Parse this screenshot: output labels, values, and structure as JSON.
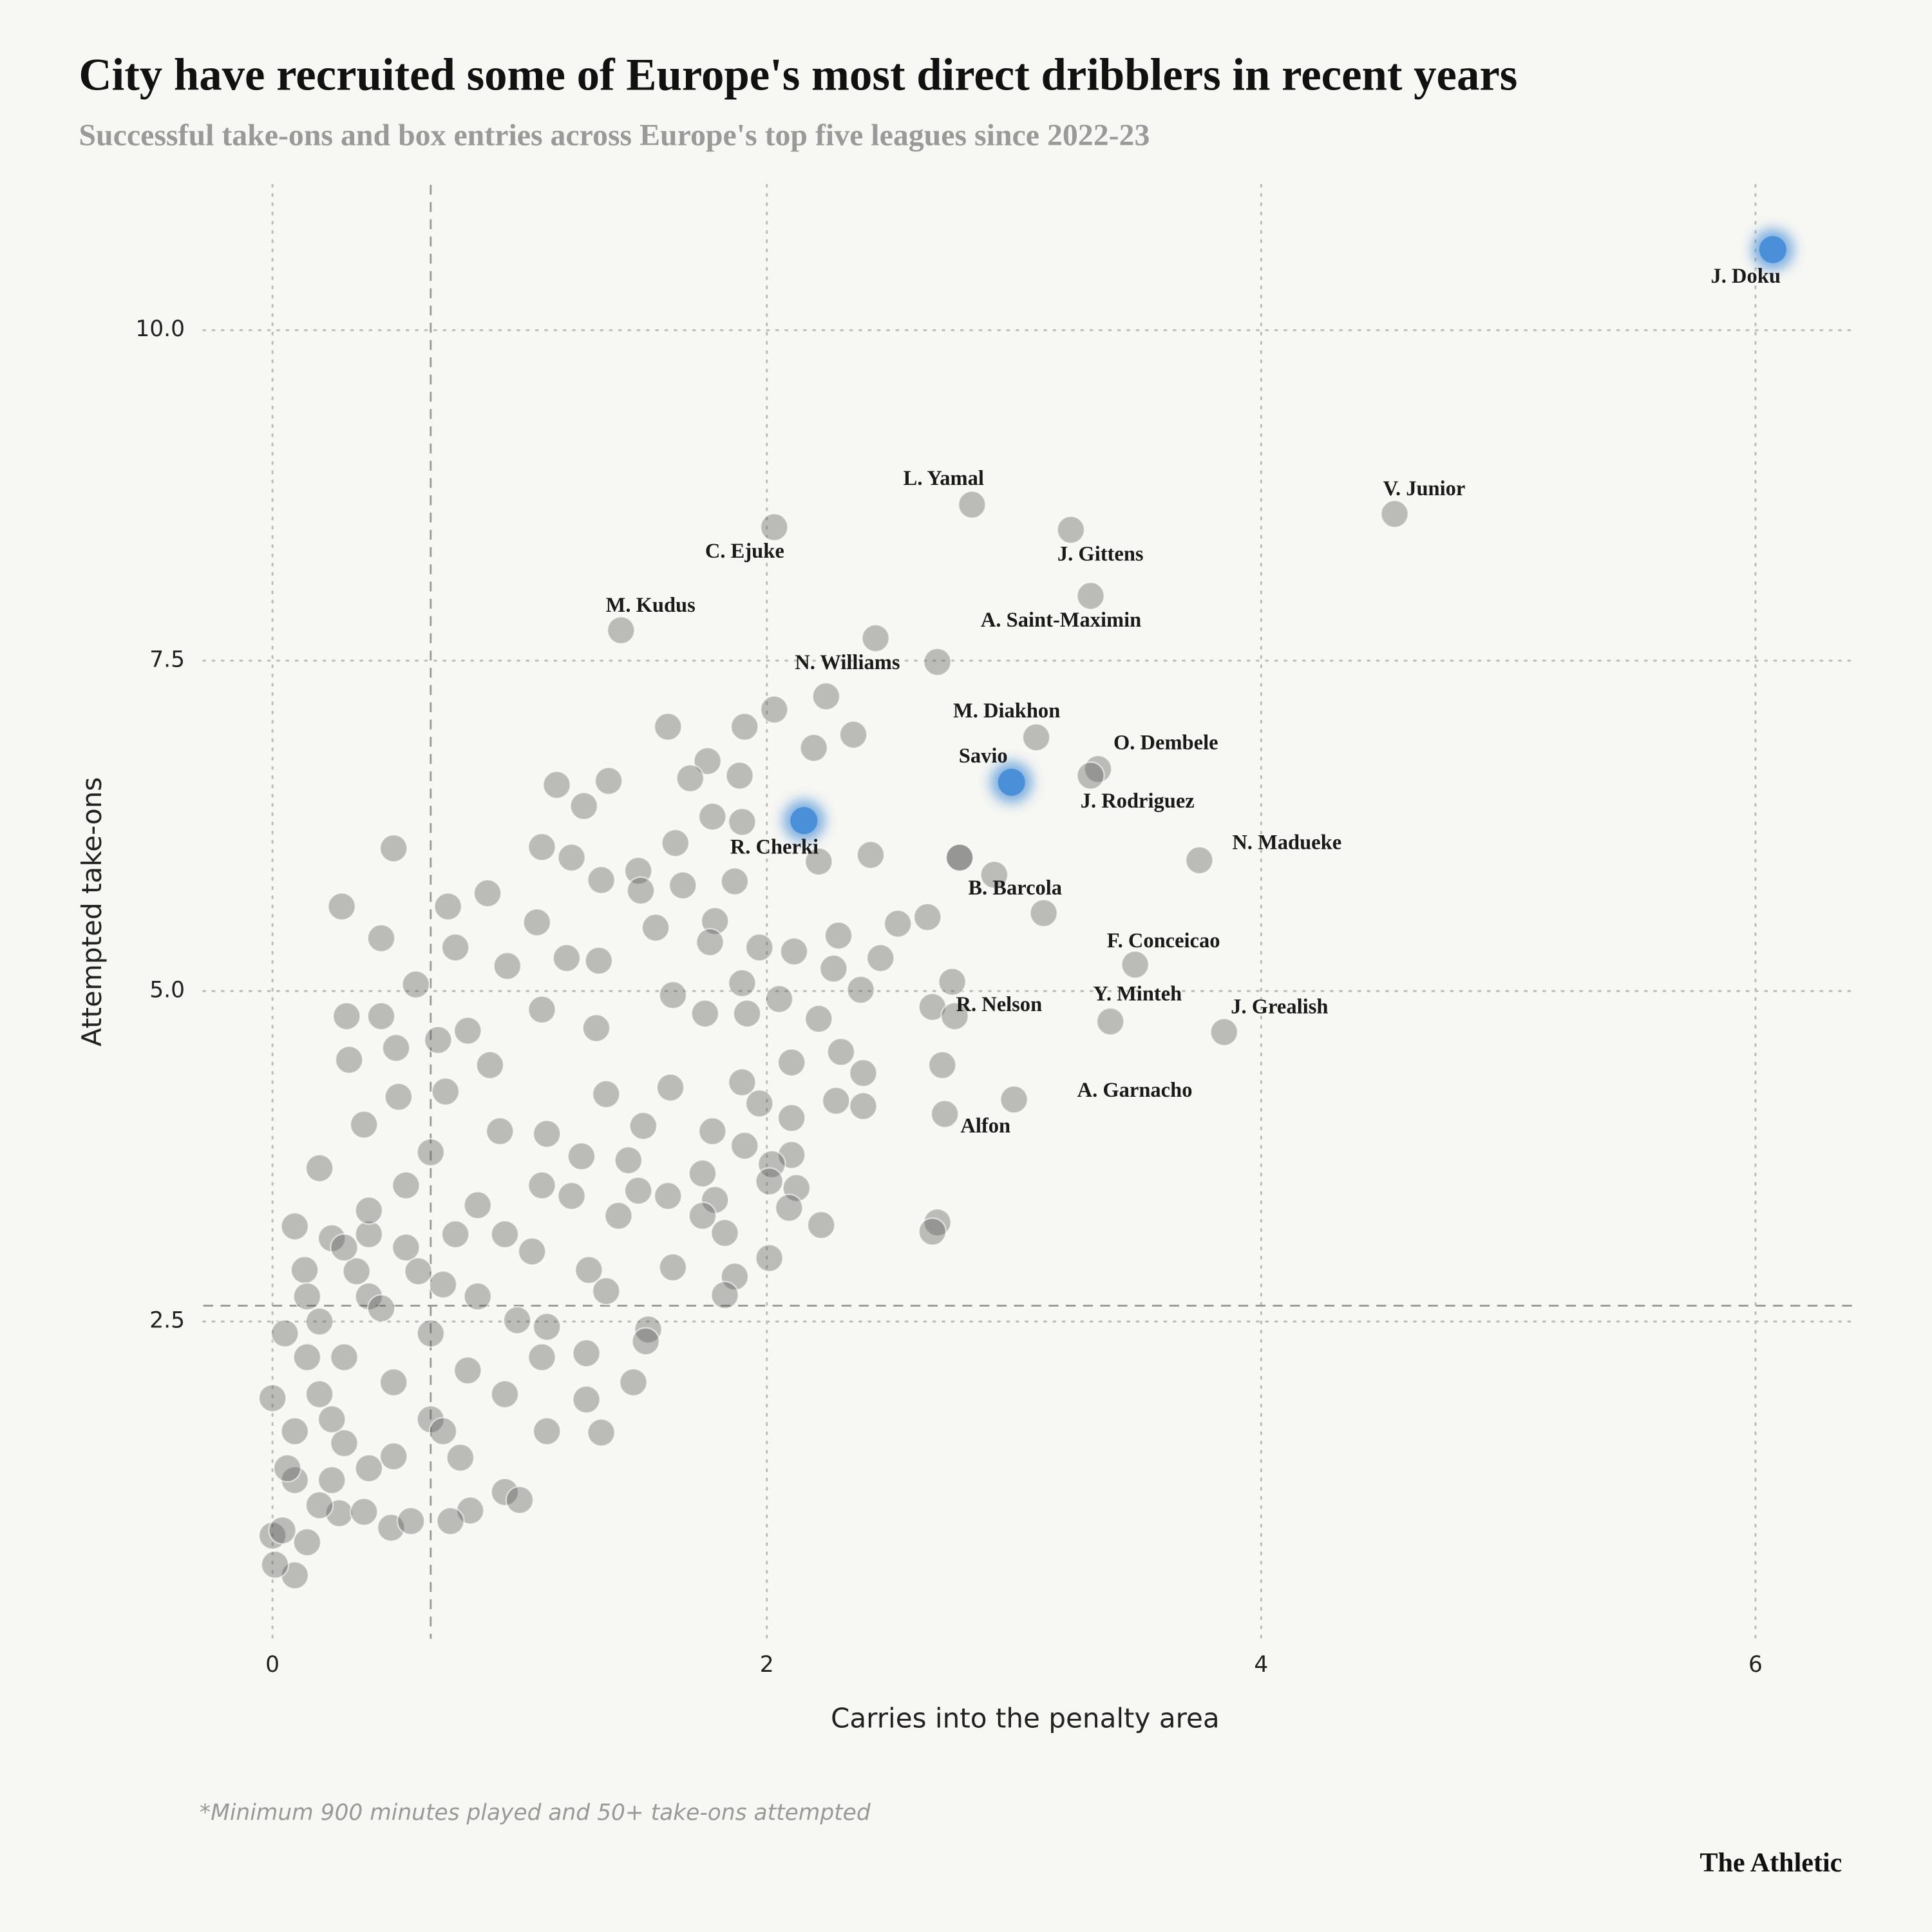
{
  "chart_data": {
    "type": "scatter",
    "title": "City have recruited some of Europe's most direct dribblers in recent years",
    "subtitle": "Successful take-ons and box entries across Europe's top five leagues since 2022-23",
    "x_label": "Carries into the penalty area",
    "y_label": "Attempted take-ons",
    "note": "*Minimum 900 minutes played and 50+ take-ons attempted",
    "source": "The Athletic",
    "xlim": [
      -0.28,
      6.4
    ],
    "ylim": [
      0.1,
      11.1
    ],
    "xticks": [
      0,
      2,
      4,
      6
    ],
    "yticks": [
      2.5,
      {
        "value": 5,
        "label": "5.0"
      },
      7.5,
      {
        "value": 10,
        "label": "10.0"
      }
    ],
    "grid": true,
    "xref": 0.64,
    "yref": 2.62,
    "series": [
      {
        "color": "#5a5a5a",
        "x": [
          1.91,
          1.6,
          2.03,
          2.24,
          2.35,
          2.44,
          2.19,
          1.76,
          1.89,
          1.69,
          1.15,
          1.36,
          1.26,
          1.78,
          1.9,
          1.63,
          1.09,
          1.21,
          0.49,
          2.42,
          2.21,
          2.78,
          2.92,
          1.48,
          1.87,
          1.33,
          1.49,
          1.66,
          0.28,
          0.71,
          0.87,
          3.12,
          2.65,
          2.53,
          1.79,
          1.55,
          1.07,
          0.44,
          2.29,
          2.46,
          1.97,
          2.11,
          1.77,
          1.19,
          1.32,
          0.74,
          0.58,
          2.75,
          2.38,
          2.27,
          1.9,
          1.62,
          0.95,
          0.3,
          0.44,
          2.67,
          2.21,
          2.05,
          1.92,
          1.75,
          1.31,
          1.09,
          0.79,
          0.67,
          0.31,
          0.5,
          2.3,
          2.1,
          2.39,
          2.71,
          1.9,
          1.61,
          1.35,
          0.88,
          0.7,
          0.51,
          2.39,
          2.28,
          1.97,
          2.1,
          1.78,
          1.5,
          1.11,
          0.37,
          0.92,
          1.91,
          2.1,
          2.02,
          1.74,
          1.44,
          1.25,
          0.64,
          0.19,
          2.12,
          2.01,
          1.79,
          1.6,
          1.48,
          1.21,
          1.09,
          2.09,
          1.74,
          1.4,
          0.83,
          2.22,
          2.69,
          2.67,
          1.83,
          0.09,
          2.01,
          1.62,
          1.87,
          1.28,
          1.05,
          1.83,
          1.35,
          1.52,
          1.11,
          1.51,
          1.27,
          1.46,
          1.27,
          1.33,
          1.11,
          0.76,
          0.94,
          1.0,
          0.8,
          0.72,
          0.48,
          0.56,
          0.27,
          0.37,
          0.09,
          0.01,
          0,
          0,
          0.05,
          0.13,
          0.24,
          0.39,
          0.54,
          0.69,
          0.83,
          0.94,
          0.39,
          0.19,
          0.29,
          0.49,
          0.64,
          0.79,
          0.94,
          0.19,
          0.09,
          0.29,
          0.49,
          0.64,
          0.09,
          0.19,
          0.04,
          0.39,
          0.24,
          0.44,
          0.59,
          0.74,
          0.34,
          0.14,
          0.99,
          1.09,
          0.69,
          0.54,
          0.39,
          0.29,
          0.14,
          0.06,
          0.14,
          0.24
        ],
        "values": [
          7.0,
          7.0,
          7.13,
          7.23,
          6.94,
          7.67,
          6.84,
          6.74,
          6.63,
          6.61,
          6.56,
          6.59,
          6.4,
          6.32,
          6.28,
          6.12,
          6.09,
          6.01,
          6.08,
          6.03,
          5.98,
          6.01,
          5.88,
          5.91,
          5.83,
          5.84,
          5.76,
          5.8,
          5.64,
          5.64,
          5.74,
          5.59,
          5.56,
          5.51,
          5.53,
          5.48,
          5.52,
          5.4,
          5.42,
          5.25,
          5.33,
          5.3,
          5.37,
          5.25,
          5.23,
          5.33,
          5.05,
          5.07,
          5.01,
          5.17,
          5.06,
          4.97,
          5.19,
          4.81,
          4.81,
          4.88,
          4.79,
          4.94,
          4.83,
          4.83,
          4.72,
          4.86,
          4.7,
          4.63,
          4.48,
          4.57,
          4.54,
          4.46,
          4.38,
          4.44,
          4.31,
          4.27,
          4.22,
          4.44,
          4.24,
          4.2,
          4.13,
          4.17,
          4.15,
          4.04,
          3.94,
          3.98,
          3.92,
          3.99,
          3.94,
          3.83,
          3.76,
          3.69,
          3.62,
          3.72,
          3.75,
          3.78,
          3.66,
          3.51,
          3.56,
          3.42,
          3.45,
          3.49,
          3.45,
          3.53,
          3.36,
          3.3,
          3.3,
          3.38,
          3.23,
          3.25,
          3.18,
          3.17,
          3.22,
          2.98,
          2.91,
          2.84,
          2.89,
          3.03,
          2.7,
          2.73,
          2.44,
          2.46,
          2.35,
          2.26,
          2.04,
          1.91,
          1.66,
          1.67,
          1.47,
          1.21,
          1.15,
          1.07,
          0.99,
          0.94,
          0.99,
          1.05,
          1.06,
          0.58,
          0.66,
          1.92,
          0.88,
          2.41,
          2.89,
          3.13,
          3.16,
          3.06,
          2.78,
          2.69,
          3.16,
          2.69,
          2.5,
          2.23,
          2.04,
          2.41,
          2.13,
          1.95,
          1.95,
          1.67,
          1.58,
          1.48,
          1.76,
          1.3,
          1.11,
          0.92,
          1.39,
          1.76,
          2.6,
          2.88,
          3.16,
          2.88,
          2.23,
          2.51,
          2.23,
          1.67,
          3.53,
          3.34,
          3.06,
          2.69,
          1.39,
          0.83,
          1.3
        ]
      },
      {
        "color": "#5a5a5a",
        "labels": [
          "L. Yamal",
          "V. Junior",
          "C. Ejuke",
          "J. Gittens",
          "A. Saint-Maximin",
          "M. Kudus",
          "N. Williams",
          "M. Diakhon",
          "O. Dembele",
          "J. Rodriguez",
          "N. Madueke",
          "B. Barcola",
          "F. Conceicao",
          "R. Nelson",
          "Y. Minteh",
          "J. Grealish",
          "A. Garnacho",
          "Alfon"
        ],
        "x": [
          2.83,
          4.54,
          2.03,
          3.23,
          3.31,
          1.41,
          2.69,
          3.09,
          3.34,
          3.31,
          3.75,
          2.78,
          3.49,
          2.76,
          3.39,
          3.85,
          3.0,
          2.72
        ],
        "values": [
          8.68,
          8.61,
          8.51,
          8.49,
          7.99,
          7.73,
          7.49,
          6.92,
          6.68,
          6.63,
          5.99,
          6.01,
          5.2,
          4.81,
          4.77,
          4.69,
          4.18,
          4.07
        ]
      },
      {
        "color": "#4a90d9",
        "labels": [
          "J. Doku",
          "Savio",
          "R. Cherki"
        ],
        "x": [
          6.07,
          2.99,
          2.15
        ],
        "values": [
          10.61,
          6.58,
          6.29
        ]
      }
    ]
  }
}
